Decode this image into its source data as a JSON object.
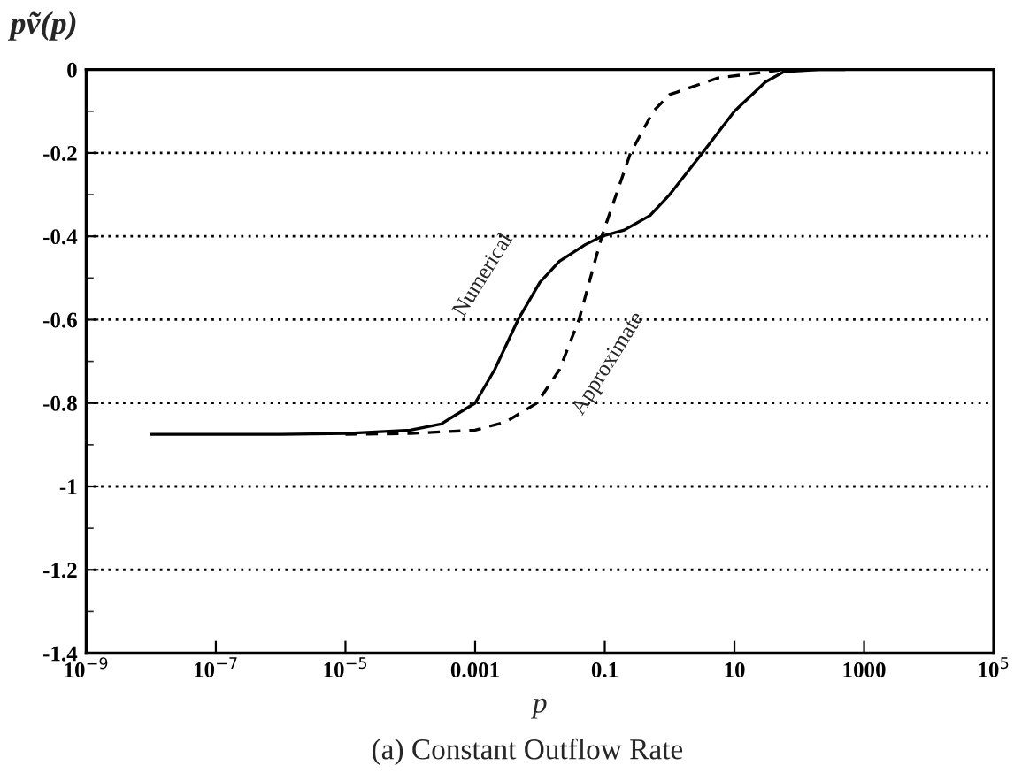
{
  "chart_data": {
    "type": "line",
    "ylabel": "pṽ(p)",
    "xlabel": "p",
    "annotations": [
      "(a) Constant Outflow Rate"
    ],
    "log": "x",
    "grid": "y",
    "legend": false,
    "marker": "none",
    "xlim": [
      1e-09,
      100000
    ],
    "ylim": [
      -1.4,
      0
    ],
    "xticks": [
      {
        "value": 1e-09,
        "label": "10$^{−9}$"
      },
      {
        "value": 1e-07,
        "label": "10$^{−7}$"
      },
      {
        "value": 1e-05,
        "label": "10$^{−5}$"
      },
      0.001,
      0.1,
      10,
      1000,
      {
        "value": 100000,
        "label": "10$^{5}$"
      }
    ],
    "yticks": [
      -1.4,
      -1.2,
      -1,
      -0.8,
      -0.6,
      -0.4,
      -0.2,
      0
    ],
    "series": [
      {
        "name": "Numerical",
        "color": "#000000",
        "line_style": "solid",
        "x": [
          1e-08,
          1e-06,
          1e-05,
          0.0001,
          0.0003,
          0.001,
          0.002,
          0.0046,
          0.01,
          0.02,
          0.05,
          0.09,
          0.2,
          0.5,
          1,
          3.2,
          10,
          30,
          58,
          200,
          500
        ],
        "values": [
          -0.875,
          -0.875,
          -0.873,
          -0.865,
          -0.85,
          -0.8,
          -0.72,
          -0.6,
          -0.51,
          -0.46,
          -0.42,
          -0.4,
          -0.385,
          -0.35,
          -0.3,
          -0.2,
          -0.1,
          -0.03,
          -0.005,
          0,
          0
        ]
      },
      {
        "name": "Approximate",
        "color": "#000000",
        "line_style": "dashed",
        "x": [
          1e-05,
          0.0001,
          0.001,
          0.003,
          0.009,
          0.02,
          0.04,
          0.09,
          0.25,
          0.56,
          1,
          5.6,
          58
        ],
        "values": [
          -0.875,
          -0.873,
          -0.865,
          -0.845,
          -0.8,
          -0.72,
          -0.6,
          -0.4,
          -0.2,
          -0.1,
          -0.06,
          -0.02,
          0
        ]
      }
    ]
  }
}
